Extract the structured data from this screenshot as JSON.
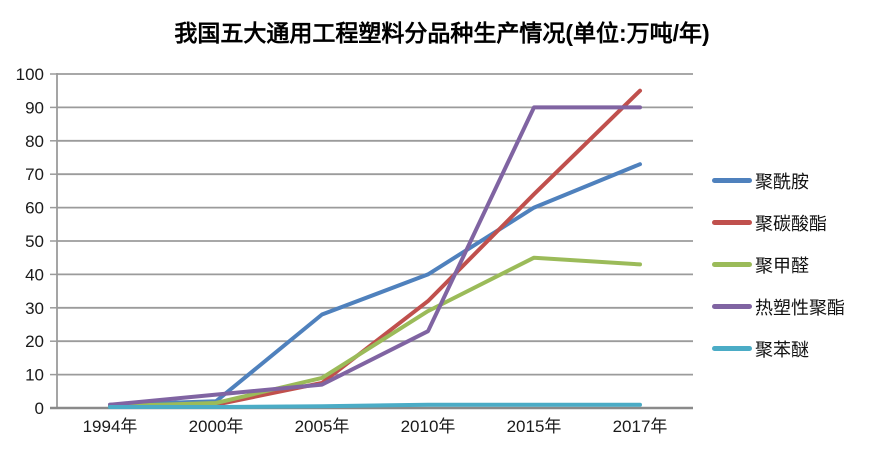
{
  "chart_data": {
    "type": "line",
    "title": "我国五大通用工程塑料分品种生产情况(单位:万吨/年)",
    "categories": [
      "1994年",
      "2000年",
      "2005年",
      "2010年",
      "2015年",
      "2017年"
    ],
    "series": [
      {
        "id": "polyamide",
        "name": "聚酰胺",
        "color": "#4F81BD",
        "values": [
          1,
          2,
          28,
          40,
          60,
          73
        ]
      },
      {
        "id": "polycarbonate",
        "name": "聚碳酸酯",
        "color": "#C0504D",
        "values": [
          0.5,
          1,
          7.5,
          32,
          64,
          95
        ]
      },
      {
        "id": "polyoxymethylene",
        "name": "聚甲醛",
        "color": "#9BBB59",
        "values": [
          0.5,
          1.5,
          9,
          29,
          45,
          43
        ]
      },
      {
        "id": "thermoplastic-polyester",
        "name": "热塑性聚酯",
        "color": "#8064A2",
        "values": [
          1,
          4,
          7,
          23,
          90,
          90
        ]
      },
      {
        "id": "polyphenylene-ether",
        "name": "聚苯醚",
        "color": "#4BACC6",
        "values": [
          0.3,
          0.3,
          0.5,
          1,
          1,
          1
        ]
      }
    ],
    "ylim": [
      0,
      100
    ],
    "yticks": [
      0,
      10,
      20,
      30,
      40,
      50,
      60,
      70,
      80,
      90,
      100
    ],
    "xlabel": "",
    "ylabel": "",
    "grid": true,
    "legend_position": "right",
    "colors": {
      "gridline": "#9b9b9b",
      "axis": "#8a8a8a",
      "tick_label": "#1a1a1a",
      "title": "#000000"
    }
  }
}
